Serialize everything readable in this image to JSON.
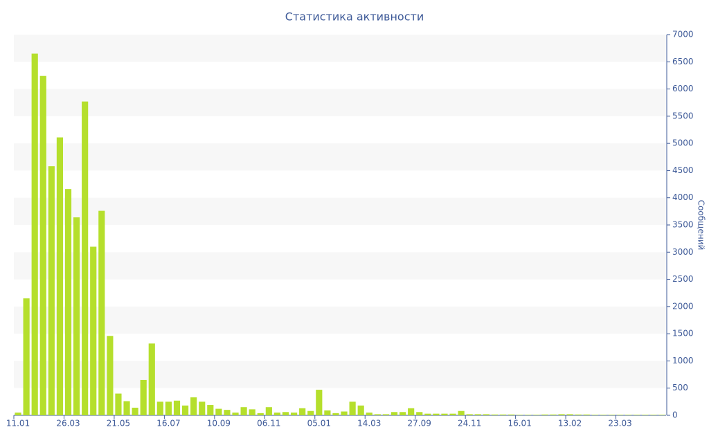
{
  "chart_data": {
    "type": "bar",
    "title": "Статистика активности",
    "y_label": "Сообщений",
    "categories": [
      "11.01",
      null,
      null,
      null,
      null,
      null,
      "26.03",
      null,
      null,
      null,
      null,
      null,
      "21.05",
      null,
      null,
      null,
      null,
      null,
      "16.07",
      null,
      null,
      null,
      null,
      null,
      "10.09",
      null,
      null,
      null,
      null,
      null,
      "06.11",
      null,
      null,
      null,
      null,
      null,
      "05.01",
      null,
      null,
      null,
      null,
      null,
      "14.03",
      null,
      null,
      null,
      null,
      null,
      "27.09",
      null,
      null,
      null,
      null,
      null,
      "24.11",
      null,
      null,
      null,
      null,
      null,
      "16.01",
      null,
      null,
      null,
      null,
      null,
      "13.02",
      null,
      null,
      null,
      null,
      null,
      "23.03",
      null,
      null,
      null,
      null,
      null
    ],
    "values": [
      50,
      2150,
      6650,
      6240,
      4580,
      5110,
      4160,
      3640,
      5770,
      3100,
      3760,
      1460,
      400,
      260,
      140,
      650,
      1320,
      250,
      250,
      270,
      180,
      330,
      250,
      190,
      120,
      100,
      50,
      150,
      110,
      40,
      150,
      50,
      60,
      50,
      130,
      80,
      470,
      90,
      40,
      70,
      250,
      180,
      50,
      20,
      20,
      60,
      60,
      130,
      60,
      30,
      30,
      30,
      30,
      80,
      20,
      20,
      20,
      15,
      15,
      15,
      10,
      10,
      10,
      15,
      15,
      20,
      20,
      15,
      15,
      10,
      10,
      10,
      10,
      10,
      10,
      10,
      10,
      10
    ],
    "color": "#b5df2c",
    "ylim": [
      0,
      7000
    ],
    "yticks": [
      0,
      500,
      1000,
      1500,
      2000,
      2500,
      3000,
      3500,
      4000,
      4500,
      5000,
      5500,
      6000,
      6500,
      7000
    ],
    "grid_bands": true,
    "y_axis_side": "right"
  }
}
